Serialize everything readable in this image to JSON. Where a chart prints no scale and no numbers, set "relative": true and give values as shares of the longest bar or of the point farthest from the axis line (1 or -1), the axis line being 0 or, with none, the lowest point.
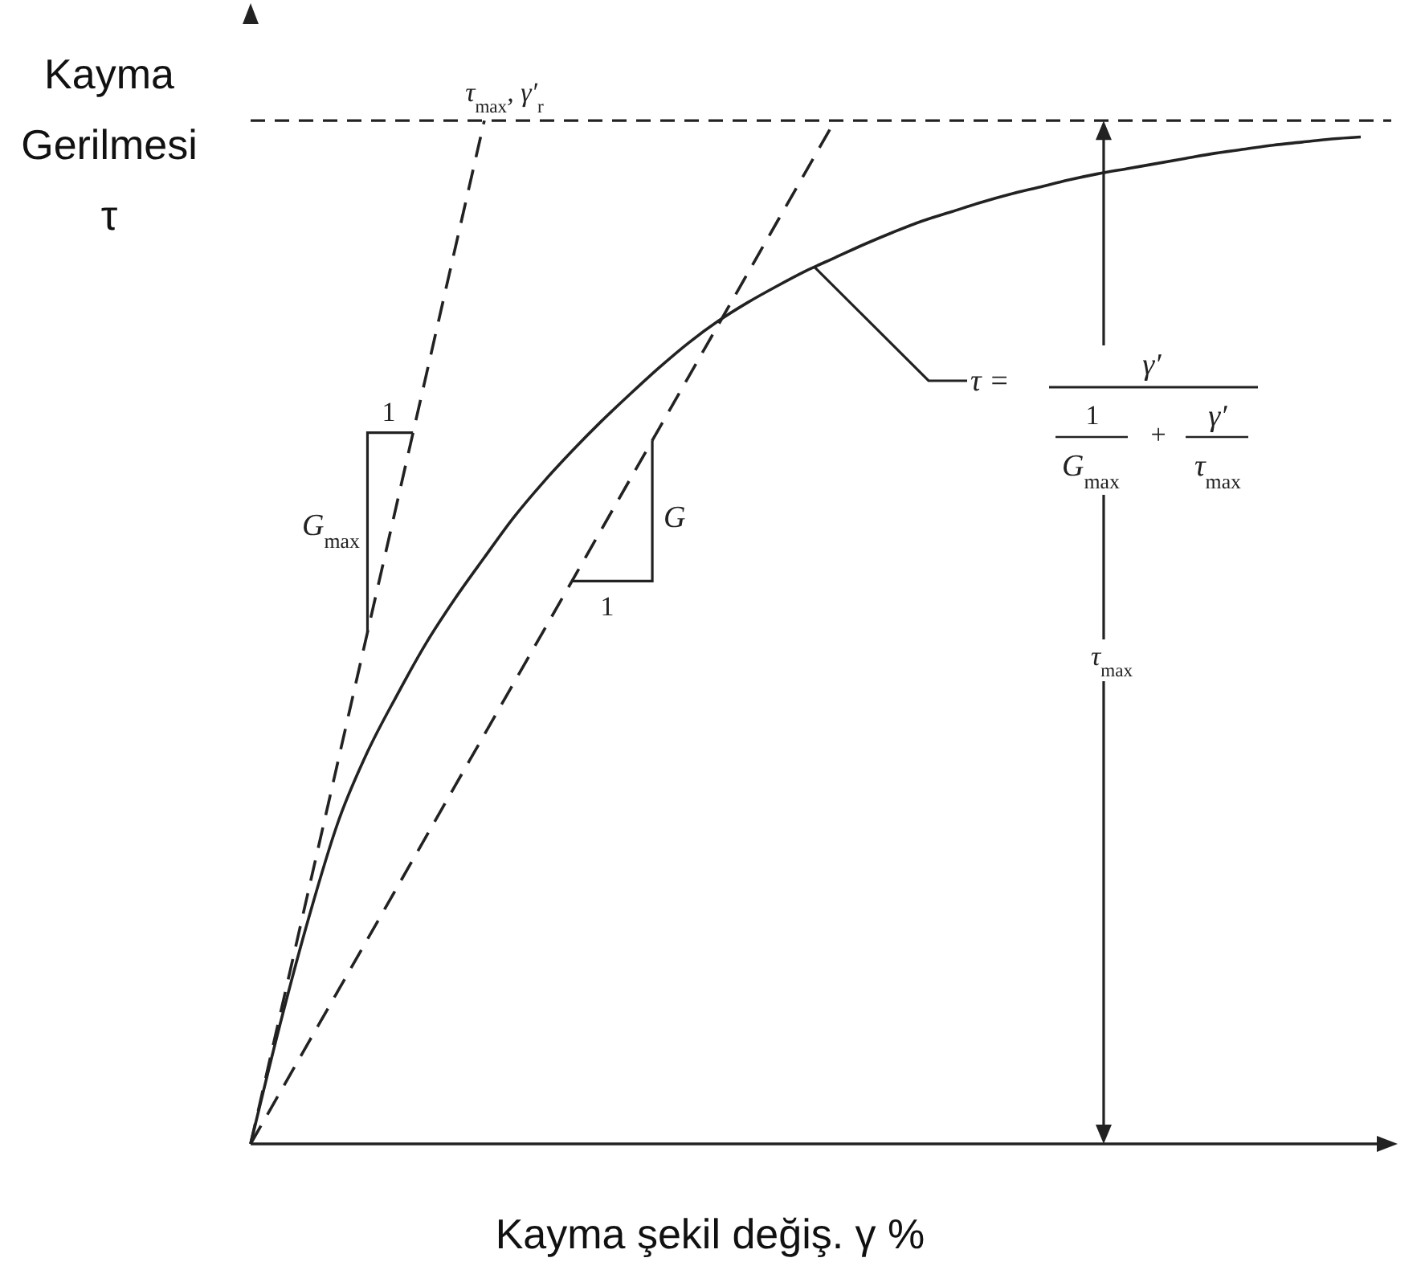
{
  "chart_data": {
    "type": "line",
    "xlabel": "Kayma şekil değiş. γ %",
    "ylabel": "Kayma Gerilmesi τ",
    "relative": true,
    "marker": "none",
    "categories": [
      null,
      null,
      null,
      null,
      null,
      null,
      null,
      null,
      null,
      null,
      null,
      null,
      null,
      null,
      null,
      null,
      null,
      null,
      null,
      null,
      null,
      null,
      null,
      null,
      null,
      null,
      null,
      null,
      null,
      null,
      null,
      null,
      null,
      null,
      null,
      null,
      null,
      null,
      null
    ],
    "series": [
      {
        "color": "#222222",
        "line_style": "solid",
        "values": [
          0,
          0.116,
          0.222,
          0.315,
          0.383,
          0.438,
          0.489,
          0.533,
          0.573,
          0.612,
          0.646,
          0.677,
          0.706,
          0.733,
          0.759,
          0.783,
          0.804,
          0.822,
          0.838,
          0.853,
          0.866,
          0.879,
          0.891,
          0.902,
          0.911,
          0.92,
          0.928,
          0.935,
          0.942,
          0.948,
          0.953,
          0.958,
          0.963,
          0.968,
          0.972,
          0.976,
          0.979,
          0.982,
          0.984
        ]
      },
      {
        "color": "#222222",
        "line_style": "dashed",
        "values": [
          0,
          0.125,
          0.25,
          0.375,
          0.5,
          0.625,
          0.75,
          0.875,
          1,
          null,
          null,
          null,
          null,
          null,
          null,
          null,
          null,
          null,
          null,
          null,
          null,
          null,
          null,
          null,
          null,
          null,
          null,
          null,
          null,
          null,
          null,
          null,
          null,
          null,
          null,
          null,
          null,
          null,
          null
        ]
      },
      {
        "color": "#222222",
        "line_style": "dashed",
        "values": [
          0,
          0.05,
          0.1,
          0.15,
          0.2,
          0.25,
          0.3,
          0.35,
          0.4,
          0.45,
          0.5,
          0.55,
          0.6,
          0.65,
          0.7,
          0.75,
          0.8,
          0.85,
          0.9,
          0.95,
          1,
          null,
          null,
          null,
          null,
          null,
          null,
          null,
          null,
          null,
          null,
          null,
          null,
          null,
          null,
          null,
          null,
          null,
          null
        ]
      }
    ],
    "ref_lines": [
      {
        "axis": "y",
        "value": 1,
        "line_style": "dashed",
        "color": "#222222"
      }
    ],
    "annotations": [
      "τ$_{max}$, γ′$_{r}$",
      "1",
      "G$_{max}$",
      "G",
      "1",
      "τ =",
      "γ′",
      "1",
      "G$_{max}$",
      "+",
      "γ′",
      "τ$_{max}$",
      "τ$_{max}$"
    ]
  }
}
